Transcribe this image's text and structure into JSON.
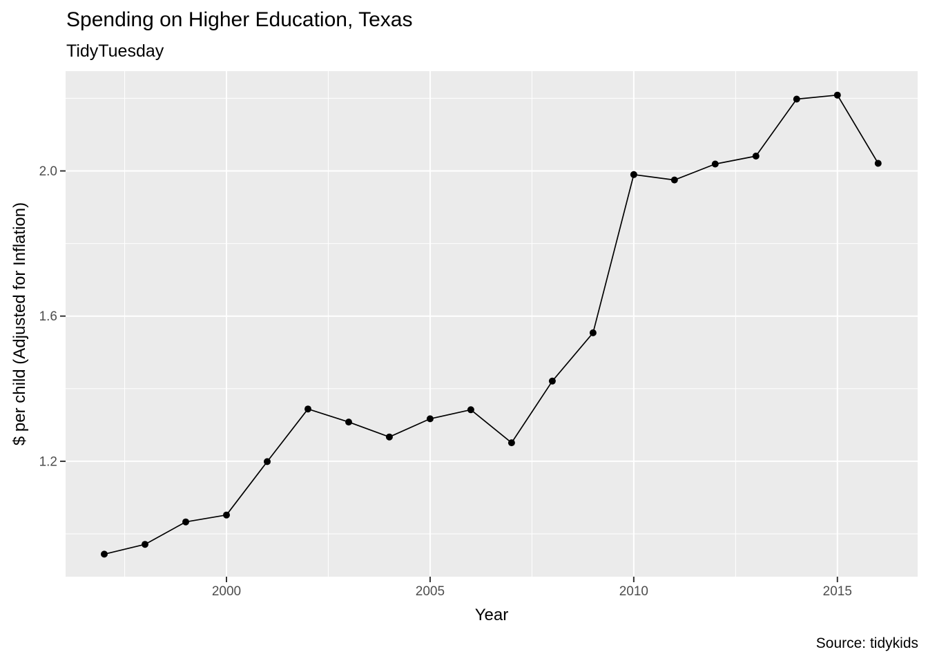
{
  "chart_data": {
    "type": "line",
    "title": "Spending on Higher Education, Texas",
    "subtitle": "TidyTuesday",
    "caption": "Source: tidykids",
    "xlabel": "Year",
    "ylabel": "$ per child (Adjusted for Inflation)",
    "x": [
      1997,
      1998,
      1999,
      2000,
      2001,
      2002,
      2003,
      2004,
      2005,
      2006,
      2007,
      2008,
      2009,
      2010,
      2011,
      2012,
      2013,
      2014,
      2015,
      2016
    ],
    "values": [
      0.944,
      0.971,
      1.033,
      1.052,
      1.199,
      1.344,
      1.308,
      1.267,
      1.317,
      1.342,
      1.251,
      1.421,
      1.554,
      1.99,
      1.975,
      2.019,
      2.041,
      2.198,
      2.209,
      2.021
    ],
    "x_ticks": [
      2000,
      2005,
      2010,
      2015
    ],
    "x_tick_labels": [
      "2000",
      "2005",
      "2010",
      "2015"
    ],
    "x_minor_breaks": [
      1997.5,
      2002.5,
      2007.5,
      2012.5
    ],
    "y_ticks": [
      1.2,
      1.6,
      2.0
    ],
    "y_tick_labels": [
      "1.2",
      "1.6",
      "2.0"
    ],
    "y_minor_breaks": [
      1.0,
      1.4,
      1.8,
      2.2
    ],
    "xlim": [
      1996.05,
      2016.97
    ],
    "ylim": [
      0.882,
      2.275
    ],
    "grid": true,
    "legend_position": "none",
    "colors": {
      "panel_background": "#EBEBEB",
      "gridline": "#FFFFFF",
      "line": "#000000",
      "point": "#000000",
      "tick_mark": "#333333",
      "tick_label": "#4D4D4D",
      "text": "#000000"
    }
  }
}
